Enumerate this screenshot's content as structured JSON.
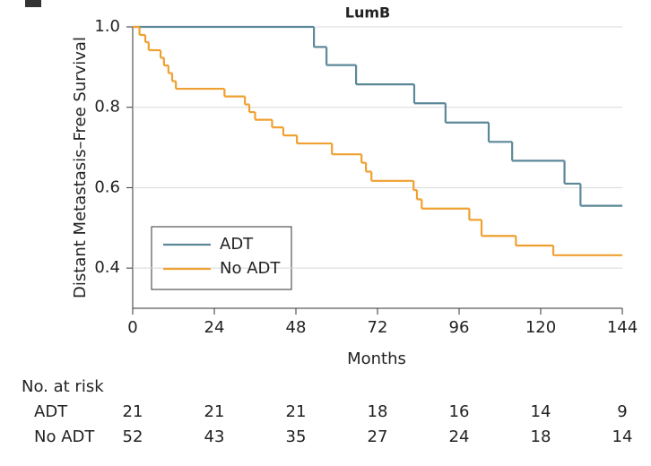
{
  "chart_data": {
    "type": "line",
    "step": true,
    "title": "LumB",
    "x_label": "Months",
    "y_label": "Distant Metastasis–Free Survival",
    "xlim": [
      0,
      144
    ],
    "xticks": [
      0,
      24,
      48,
      72,
      96,
      120,
      144
    ],
    "ylim": [
      0.3,
      1.0
    ],
    "yticks": [
      0.4,
      0.6,
      0.8,
      {
        "value": 1.0,
        "label": "1.0"
      }
    ],
    "grid": true,
    "legend": "lower left",
    "series": [
      {
        "name": "ADT",
        "color": "#5b8898",
        "x": [
          0,
          53.3,
          57,
          65.7,
          82.8,
          92,
          104.7,
          111.6,
          127,
          131.7
        ],
        "values": [
          1.0,
          0.95,
          0.905,
          0.857,
          0.81,
          0.762,
          0.714,
          0.667,
          0.61,
          0.555
        ]
      },
      {
        "name": "No ADT",
        "color": "#f0a030",
        "x": [
          0,
          2,
          3.7,
          4.7,
          8.2,
          9.2,
          10.5,
          11.6,
          12.7,
          27,
          33,
          34.3,
          36,
          41,
          44.3,
          48.3,
          58.6,
          67.3,
          68.6,
          70.2,
          82.6,
          83.6,
          85,
          99,
          102.6,
          112.7,
          123.7
        ],
        "values": [
          1.0,
          0.98,
          0.962,
          0.942,
          0.923,
          0.904,
          0.885,
          0.865,
          0.846,
          0.827,
          0.807,
          0.788,
          0.769,
          0.75,
          0.73,
          0.71,
          0.683,
          0.662,
          0.64,
          0.617,
          0.594,
          0.571,
          0.548,
          0.52,
          0.48,
          0.456,
          0.432
        ]
      }
    ]
  },
  "risk_table": {
    "title": "No. at risk",
    "rows": [
      {
        "name": "ADT",
        "values": [
          21,
          21,
          21,
          18,
          16,
          14,
          9
        ]
      },
      {
        "name": "No ADT",
        "values": [
          52,
          43,
          35,
          27,
          24,
          18,
          14
        ]
      }
    ]
  }
}
